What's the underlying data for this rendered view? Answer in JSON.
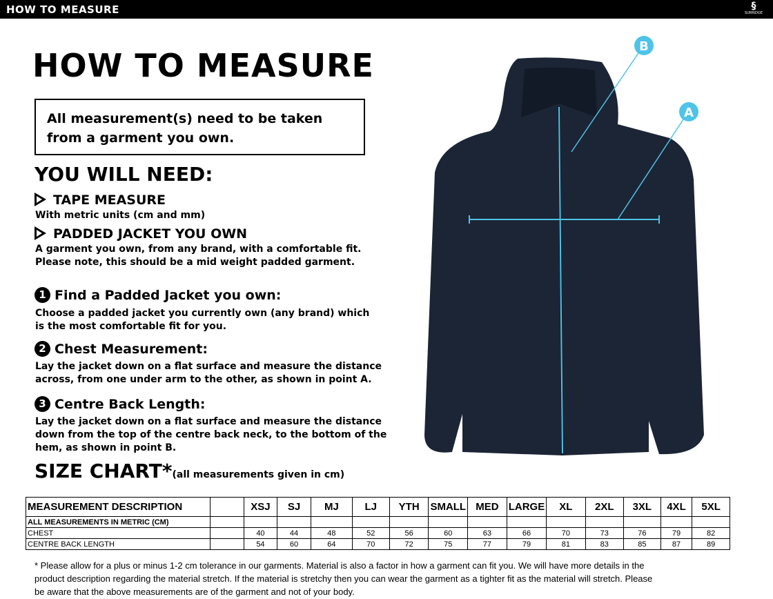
{
  "topbar": {
    "title": "HOW TO MEASURE",
    "brand": "SURRIDGE"
  },
  "title": "HOW TO MEASURE",
  "notice": "All measurement(s) need to be taken from a garment you own.",
  "need": {
    "heading": "YOU WILL NEED:",
    "items": [
      {
        "title": "TAPE MEASURE",
        "text": "With metric units (cm and mm)"
      },
      {
        "title": "PADDED JACKET YOU OWN",
        "text": "A garment you own, from any brand, with a comfortable fit. Please note, this should be a mid weight padded garment."
      }
    ]
  },
  "steps": [
    {
      "num": "1",
      "title": "Find a Padded Jacket you own:",
      "text": "Choose a padded jacket you currently own (any brand) which is the most comfortable fit for you."
    },
    {
      "num": "2",
      "title": "Chest Measurement:",
      "text": "Lay the jacket down on a flat surface and measure the distance across, from one under arm to the other, as shown in point A."
    },
    {
      "num": "3",
      "title": "Centre Back Length:",
      "text": "Lay the jacket down on a flat surface and measure the distance down from the top of the centre back neck, to the bottom of the hem, as shown in point B."
    }
  ],
  "size_chart": {
    "heading": "SIZE CHART*",
    "note": "(all measurements given in cm)",
    "header": "MEASUREMENT DESCRIPTION",
    "subheader": "ALL MEASUREMENTS IN METRIC (CM)",
    "sizes": [
      "XSJ",
      "SJ",
      "MJ",
      "LJ",
      "YTH",
      "SMALL",
      "MED",
      "LARGE",
      "XL",
      "2XL",
      "3XL",
      "4XL",
      "5XL"
    ],
    "rows": [
      {
        "label": "CHEST",
        "values": [
          "40",
          "44",
          "48",
          "52",
          "56",
          "60",
          "63",
          "66",
          "70",
          "73",
          "76",
          "79",
          "82"
        ]
      },
      {
        "label": "CENTRE BACK LENGTH",
        "values": [
          "54",
          "60",
          "64",
          "70",
          "72",
          "75",
          "77",
          "79",
          "81",
          "83",
          "85",
          "87",
          "89"
        ]
      }
    ]
  },
  "markers": {
    "a": "A",
    "b": "B"
  },
  "colors": {
    "accent": "#4fc3e8",
    "jacket": "#1c2535"
  },
  "footnote": "* Please allow for a plus or minus 1-2 cm tolerance in our garments. Material is also a factor in how a garment can fit you. We will have more details in the product description regarding the material stretch.  If the material is stretchy then you can wear the garment as a tighter fit as the material will stretch.  Please be aware that the above measurements are of the garment and not of your body."
}
